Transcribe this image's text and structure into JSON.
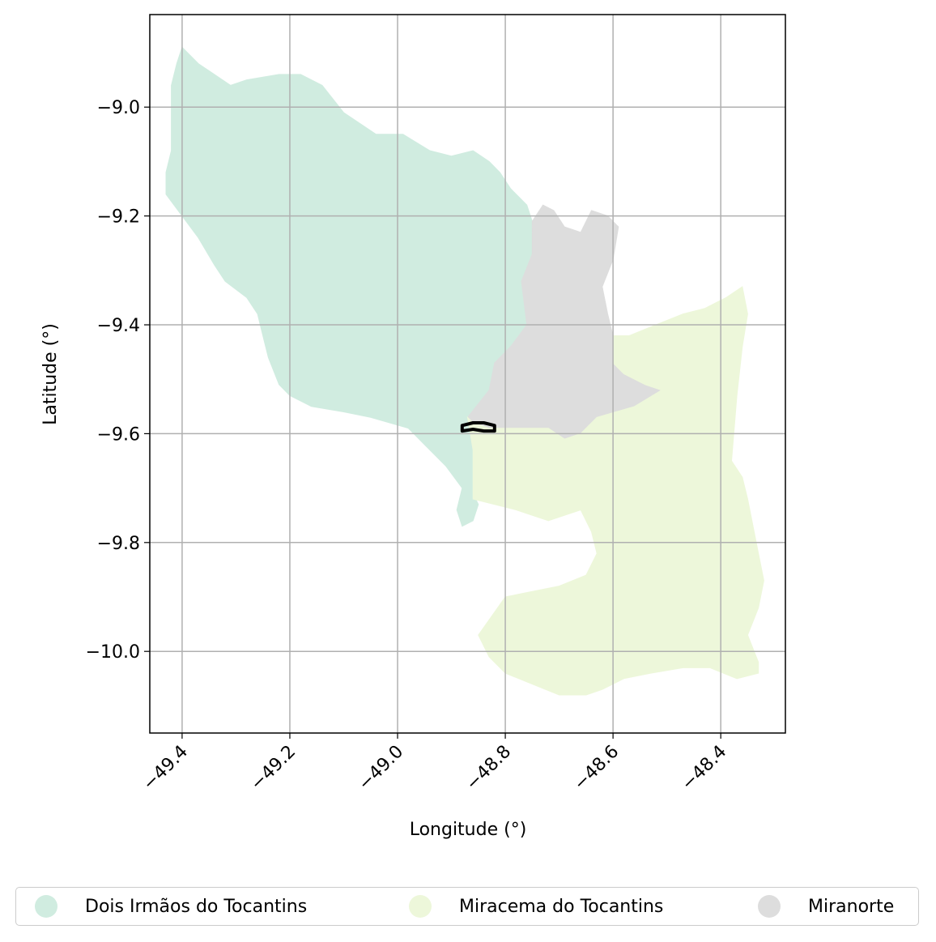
{
  "chart_data": {
    "type": "map",
    "xlabel": "Longitude (°)",
    "ylabel": "Latitude (°)",
    "xlim": [
      -49.46,
      -48.28
    ],
    "ylim": [
      -10.15,
      -8.83
    ],
    "x_ticks": [
      {
        "value": -49.4,
        "label": "−49.4"
      },
      {
        "value": -49.2,
        "label": "−49.2"
      },
      {
        "value": -49.0,
        "label": "−49.0"
      },
      {
        "value": -48.8,
        "label": "−48.8"
      },
      {
        "value": -48.6,
        "label": "−48.6"
      },
      {
        "value": -48.4,
        "label": "−48.4"
      }
    ],
    "y_ticks": [
      {
        "value": -9.0,
        "label": "−9.0"
      },
      {
        "value": -9.2,
        "label": "−9.2"
      },
      {
        "value": -9.4,
        "label": "−9.4"
      },
      {
        "value": -9.6,
        "label": "−9.6"
      },
      {
        "value": -9.8,
        "label": "−9.8"
      },
      {
        "value": -10.0,
        "label": "−10.0"
      }
    ],
    "grid": true,
    "regions": [
      {
        "name": "Dois Irmãos do Tocantins",
        "color": "#d0ece0",
        "polygon": [
          [
            -49.4,
            -8.89
          ],
          [
            -49.37,
            -8.92
          ],
          [
            -49.34,
            -8.94
          ],
          [
            -49.31,
            -8.96
          ],
          [
            -49.28,
            -8.95
          ],
          [
            -49.22,
            -8.94
          ],
          [
            -49.18,
            -8.94
          ],
          [
            -49.14,
            -8.96
          ],
          [
            -49.1,
            -9.01
          ],
          [
            -49.04,
            -9.05
          ],
          [
            -48.99,
            -9.05
          ],
          [
            -48.94,
            -9.08
          ],
          [
            -48.9,
            -9.09
          ],
          [
            -48.86,
            -9.08
          ],
          [
            -48.83,
            -9.1
          ],
          [
            -48.81,
            -9.12
          ],
          [
            -48.79,
            -9.15
          ],
          [
            -48.76,
            -9.18
          ],
          [
            -48.75,
            -9.21
          ],
          [
            -48.75,
            -9.27
          ],
          [
            -48.77,
            -9.32
          ],
          [
            -48.76,
            -9.4
          ],
          [
            -48.79,
            -9.44
          ],
          [
            -48.82,
            -9.47
          ],
          [
            -48.83,
            -9.52
          ],
          [
            -48.87,
            -9.57
          ],
          [
            -48.86,
            -9.63
          ],
          [
            -48.85,
            -9.67
          ],
          [
            -48.86,
            -9.71
          ],
          [
            -48.85,
            -9.73
          ],
          [
            -48.86,
            -9.76
          ],
          [
            -48.88,
            -9.77
          ],
          [
            -48.89,
            -9.74
          ],
          [
            -48.88,
            -9.7
          ],
          [
            -48.91,
            -9.66
          ],
          [
            -48.95,
            -9.62
          ],
          [
            -48.98,
            -9.59
          ],
          [
            -49.05,
            -9.57
          ],
          [
            -49.1,
            -9.56
          ],
          [
            -49.16,
            -9.55
          ],
          [
            -49.2,
            -9.53
          ],
          [
            -49.22,
            -9.51
          ],
          [
            -49.24,
            -9.46
          ],
          [
            -49.25,
            -9.42
          ],
          [
            -49.26,
            -9.38
          ],
          [
            -49.28,
            -9.35
          ],
          [
            -49.32,
            -9.32
          ],
          [
            -49.34,
            -9.29
          ],
          [
            -49.37,
            -9.24
          ],
          [
            -49.4,
            -9.2
          ],
          [
            -49.43,
            -9.16
          ],
          [
            -49.43,
            -9.12
          ],
          [
            -49.42,
            -9.08
          ],
          [
            -49.42,
            -9.03
          ],
          [
            -49.42,
            -8.96
          ],
          [
            -49.41,
            -8.92
          ]
        ]
      },
      {
        "name": "Miranorte",
        "color": "#dddddd",
        "polygon": [
          [
            -48.75,
            -9.21
          ],
          [
            -48.73,
            -9.18
          ],
          [
            -48.71,
            -9.19
          ],
          [
            -48.69,
            -9.22
          ],
          [
            -48.66,
            -9.23
          ],
          [
            -48.64,
            -9.19
          ],
          [
            -48.61,
            -9.2
          ],
          [
            -48.59,
            -9.22
          ],
          [
            -48.6,
            -9.28
          ],
          [
            -48.62,
            -9.33
          ],
          [
            -48.61,
            -9.38
          ],
          [
            -48.6,
            -9.42
          ],
          [
            -48.6,
            -9.47
          ],
          [
            -48.58,
            -9.49
          ],
          [
            -48.54,
            -9.51
          ],
          [
            -48.51,
            -9.52
          ],
          [
            -48.56,
            -9.55
          ],
          [
            -48.63,
            -9.57
          ],
          [
            -48.66,
            -9.6
          ],
          [
            -48.69,
            -9.61
          ],
          [
            -48.72,
            -9.59
          ],
          [
            -48.78,
            -9.59
          ],
          [
            -48.83,
            -9.59
          ],
          [
            -48.86,
            -9.58
          ],
          [
            -48.87,
            -9.57
          ],
          [
            -48.83,
            -9.52
          ],
          [
            -48.82,
            -9.47
          ],
          [
            -48.79,
            -9.44
          ],
          [
            -48.76,
            -9.4
          ],
          [
            -48.77,
            -9.32
          ],
          [
            -48.75,
            -9.27
          ]
        ]
      },
      {
        "name": "Miracema do Tocantins",
        "color": "#edf7da",
        "polygon": [
          [
            -48.6,
            -9.42
          ],
          [
            -48.57,
            -9.42
          ],
          [
            -48.52,
            -9.4
          ],
          [
            -48.47,
            -9.38
          ],
          [
            -48.43,
            -9.37
          ],
          [
            -48.39,
            -9.35
          ],
          [
            -48.36,
            -9.33
          ],
          [
            -48.35,
            -9.38
          ],
          [
            -48.36,
            -9.44
          ],
          [
            -48.37,
            -9.53
          ],
          [
            -48.38,
            -9.65
          ],
          [
            -48.36,
            -9.68
          ],
          [
            -48.35,
            -9.72
          ],
          [
            -48.33,
            -9.82
          ],
          [
            -48.32,
            -9.87
          ],
          [
            -48.33,
            -9.92
          ],
          [
            -48.35,
            -9.97
          ],
          [
            -48.33,
            -10.02
          ],
          [
            -48.33,
            -10.04
          ],
          [
            -48.37,
            -10.05
          ],
          [
            -48.42,
            -10.03
          ],
          [
            -48.47,
            -10.03
          ],
          [
            -48.53,
            -10.04
          ],
          [
            -48.58,
            -10.05
          ],
          [
            -48.62,
            -10.07
          ],
          [
            -48.65,
            -10.08
          ],
          [
            -48.7,
            -10.08
          ],
          [
            -48.75,
            -10.06
          ],
          [
            -48.8,
            -10.04
          ],
          [
            -48.83,
            -10.01
          ],
          [
            -48.85,
            -9.97
          ],
          [
            -48.8,
            -9.9
          ],
          [
            -48.75,
            -9.89
          ],
          [
            -48.7,
            -9.88
          ],
          [
            -48.65,
            -9.86
          ],
          [
            -48.63,
            -9.82
          ],
          [
            -48.64,
            -9.78
          ],
          [
            -48.66,
            -9.74
          ],
          [
            -48.72,
            -9.76
          ],
          [
            -48.78,
            -9.74
          ],
          [
            -48.82,
            -9.73
          ],
          [
            -48.86,
            -9.72
          ],
          [
            -48.86,
            -9.63
          ],
          [
            -48.87,
            -9.57
          ],
          [
            -48.86,
            -9.58
          ],
          [
            -48.83,
            -9.59
          ],
          [
            -48.78,
            -9.59
          ],
          [
            -48.72,
            -9.59
          ],
          [
            -48.69,
            -9.61
          ],
          [
            -48.66,
            -9.6
          ],
          [
            -48.63,
            -9.57
          ],
          [
            -48.56,
            -9.55
          ],
          [
            -48.51,
            -9.52
          ],
          [
            -48.54,
            -9.51
          ],
          [
            -48.58,
            -9.49
          ],
          [
            -48.6,
            -9.47
          ]
        ]
      }
    ],
    "outline": {
      "color": "#000000",
      "polygon": [
        [
          -48.88,
          -9.585
        ],
        [
          -48.86,
          -9.58
        ],
        [
          -48.84,
          -9.58
        ],
        [
          -48.82,
          -9.585
        ],
        [
          -48.82,
          -9.595
        ],
        [
          -48.84,
          -9.595
        ],
        [
          -48.86,
          -9.592
        ],
        [
          -48.88,
          -9.595
        ]
      ]
    },
    "legend": {
      "placement": "bottom-center",
      "entries": [
        {
          "label": "Dois Irmãos do Tocantins",
          "color": "#d0ece0"
        },
        {
          "label": "Miracema do Tocantins",
          "color": "#edf7da"
        },
        {
          "label": "Miranorte",
          "color": "#dddddd"
        }
      ]
    }
  }
}
